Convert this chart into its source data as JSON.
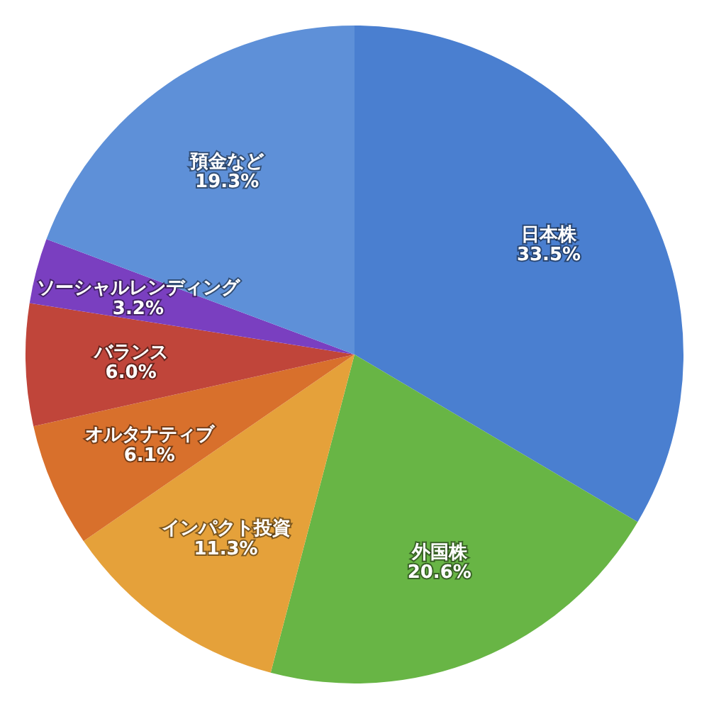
{
  "chart_data": {
    "type": "pie",
    "categories": [
      "日本株",
      "外国株",
      "インパクト投資",
      "オルタナティブ",
      "バランス",
      "ソーシャルレンディング",
      "預金など"
    ],
    "values": [
      33.5,
      20.6,
      11.3,
      6.1,
      6.0,
      3.2,
      19.3
    ],
    "colors": [
      "#4a7fd0",
      "#68b545",
      "#e5a13a",
      "#d8702c",
      "#c0453a",
      "#7a3fc0",
      "#5e90d8"
    ],
    "value_labels": [
      "33.5%",
      "20.6%",
      "11.3%",
      "6.1%",
      "6.0%",
      "3.2%",
      "19.3%"
    ]
  }
}
